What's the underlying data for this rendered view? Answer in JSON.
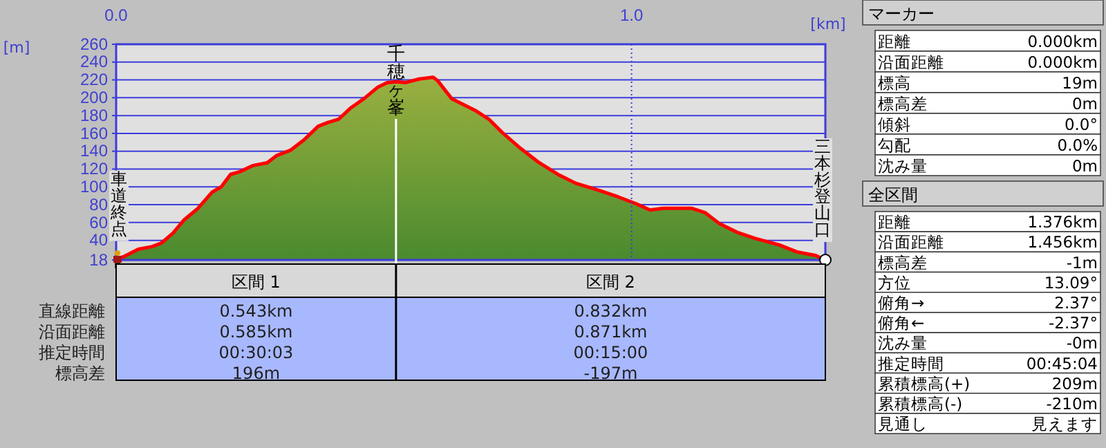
{
  "chart_data": [
    {
      "type": "area",
      "xlabel": "[km]",
      "ylabel": "[m]",
      "x": [
        0,
        0.016,
        0.043,
        0.07,
        0.088,
        0.11,
        0.132,
        0.159,
        0.186,
        0.204,
        0.222,
        0.24,
        0.266,
        0.293,
        0.311,
        0.338,
        0.365,
        0.392,
        0.41,
        0.432,
        0.454,
        0.481,
        0.508,
        0.526,
        0.545,
        0.562,
        0.588,
        0.615,
        0.624,
        0.651,
        0.696,
        0.723,
        0.749,
        0.785,
        0.821,
        0.857,
        0.892,
        0.937,
        0.973,
        1.009,
        1.036,
        1.062,
        1.116,
        1.143,
        1.17,
        1.205,
        1.241,
        1.286,
        1.321,
        1.357,
        1.376
      ],
      "series": [
        {
          "color": "#ff0000",
          "values": [
            19,
            22,
            30,
            33,
            37,
            48,
            63,
            76,
            94,
            100,
            114,
            117,
            124,
            127,
            135,
            141,
            153,
            168,
            172,
            176,
            188,
            199,
            212,
            217,
            218,
            217,
            221,
            223,
            219,
            199,
            186,
            176,
            161,
            143,
            127,
            114,
            104,
            96,
            89,
            81,
            74,
            76,
            76,
            71,
            59,
            49,
            42,
            35,
            27,
            23,
            18
          ]
        }
      ],
      "xlim": [
        0,
        1.376
      ],
      "xticks": [
        {
          "value": 0,
          "label": "0.0"
        },
        {
          "value": 1,
          "label": "1.0"
        }
      ],
      "ylim": [
        18,
        260
      ],
      "yticks": [
        18,
        40,
        60,
        80,
        100,
        120,
        140,
        160,
        180,
        200,
        220,
        240,
        260
      ],
      "grid": "y",
      "ref_lines": [
        {
          "axis": "x",
          "value": 0.543,
          "label": "千穂ヶ峯",
          "color": "#ffffff"
        },
        {
          "axis": "x",
          "value": 1,
          "color": "#3c3cdc",
          "line_style": "dotted"
        }
      ],
      "annotations": [
        {
          "text": "車道終点",
          "x": 0,
          "y": 19
        },
        {
          "text": "三本杉登山口",
          "x": 1.376,
          "y": 18
        }
      ]
    },
    {
      "type": "other",
      "categories": [
        "区間 1",
        "区間 2"
      ],
      "y_categories": [
        "直線距離",
        "沿面距離",
        "推定時間",
        "標高差"
      ],
      "cell_labels": [
        [
          "0.543km",
          "0.832km"
        ],
        [
          "0.585km",
          "0.871km"
        ],
        [
          "00:30:03",
          "00:15:00"
        ],
        [
          "196m",
          "-197m"
        ]
      ]
    },
    {
      "type": "other",
      "title": "マーカー",
      "y_categories": [
        "距離",
        "沿面距離",
        "標高",
        "標高差",
        "傾斜",
        "勾配",
        "沈み量"
      ],
      "cell_labels": [
        [
          "0.000km"
        ],
        [
          "0.000km"
        ],
        [
          "19m"
        ],
        [
          "0m"
        ],
        [
          "0.0°"
        ],
        [
          "0.0%"
        ],
        [
          "0m"
        ]
      ]
    },
    {
      "type": "other",
      "title": "全区間",
      "y_categories": [
        "距離",
        "沿面距離",
        "標高差",
        "方位",
        "俯角→",
        "俯角←",
        "沈み量",
        "推定時間",
        "累積標高(+)",
        "累積標高(-)",
        "見通し"
      ],
      "cell_labels": [
        [
          "1.376km"
        ],
        [
          "1.456km"
        ],
        [
          "-1m"
        ],
        [
          "13.09°"
        ],
        [
          "2.37°"
        ],
        [
          "-2.37°"
        ],
        [
          "-0m"
        ],
        [
          "00:45:04"
        ],
        [
          "209m"
        ],
        [
          "-210m"
        ],
        [
          "見えます"
        ]
      ]
    }
  ]
}
